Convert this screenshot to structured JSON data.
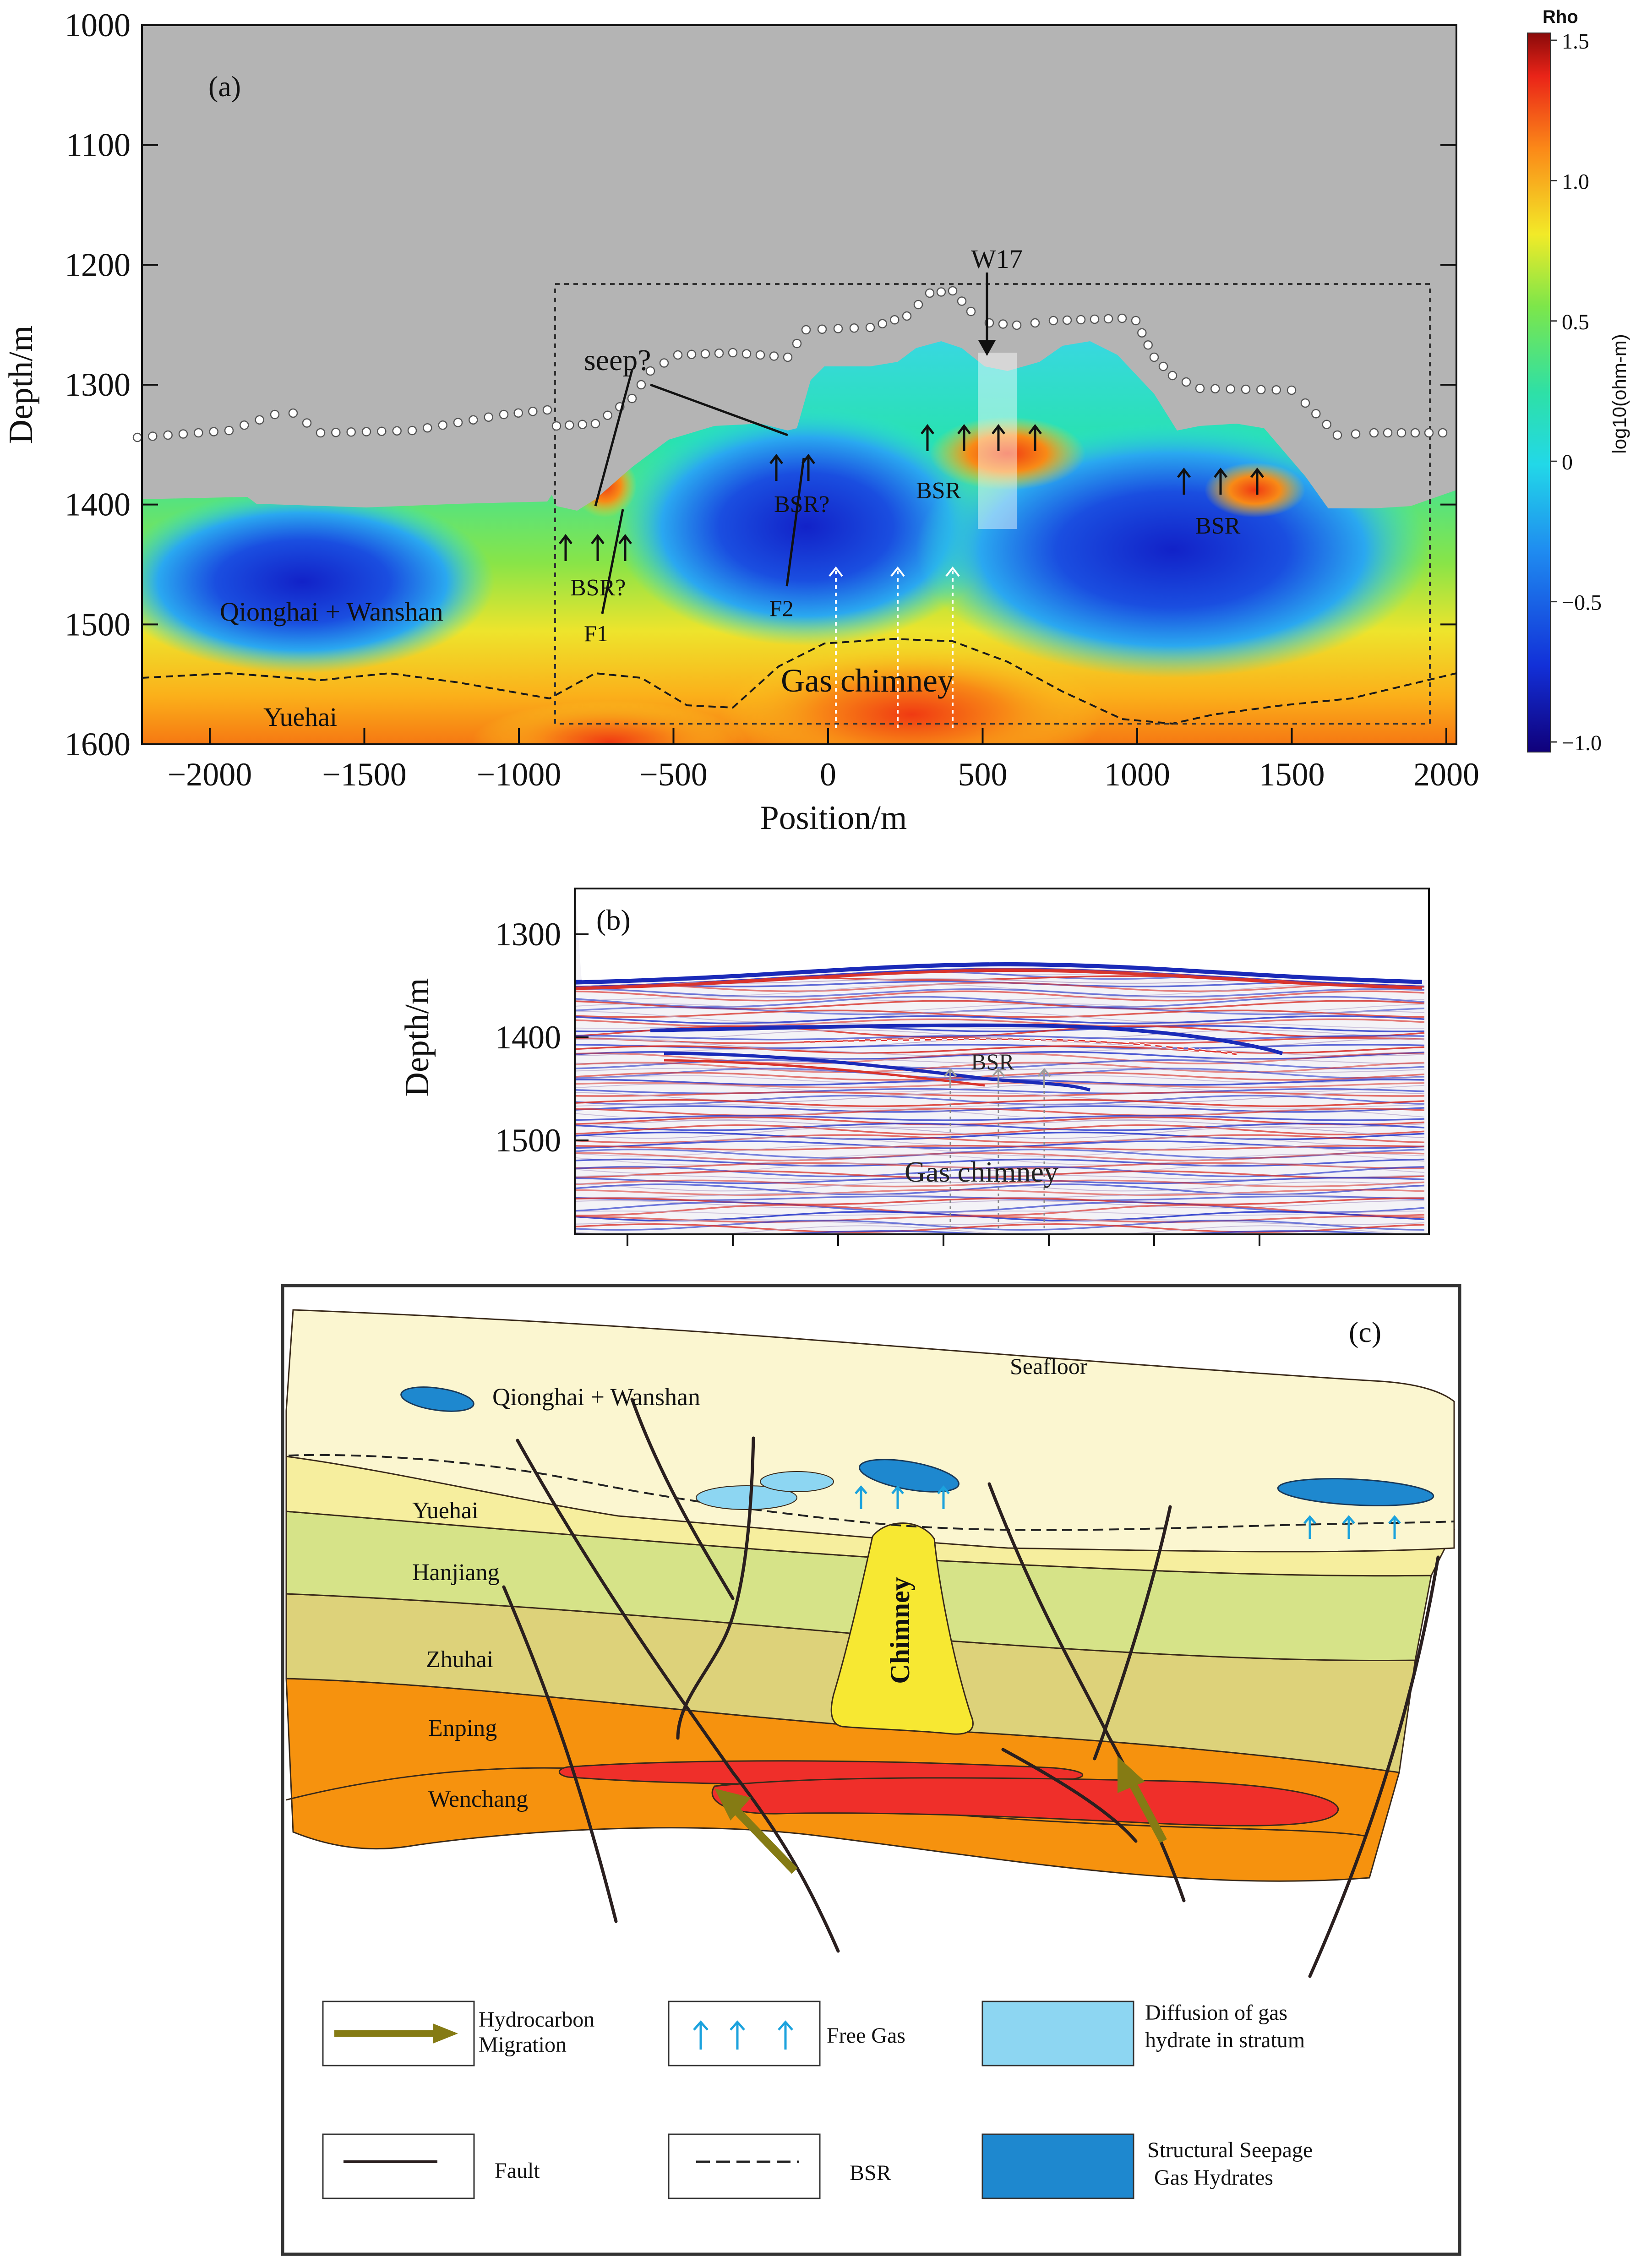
{
  "panel_a": {
    "label": "(a)",
    "ylabel": "Depth/m",
    "xlabel": "Position/m",
    "yticks": [
      "1000",
      "1100",
      "1200",
      "1300",
      "1400",
      "1500",
      "1600"
    ],
    "xticks": [
      "−2000",
      "−1500",
      "−1000",
      "−500",
      "0",
      "500",
      "1000",
      "1500",
      "2000"
    ],
    "annotations": {
      "well": "W17",
      "seep": "seep?",
      "bsr_q1": "BSR?",
      "bsr_q2": "BSR?",
      "bsr1": "BSR",
      "bsr2": "BSR",
      "f1": "F1",
      "f2": "F2",
      "unit_upper": "Qionghai + Wanshan",
      "unit_lower": "Yuehai",
      "chimney": "Gas chimney"
    },
    "colorbar": {
      "title": "Rho",
      "unit": "log10(ohm-m)",
      "ticks": [
        "1.5",
        "1.0",
        "0.5",
        "0",
        "−0.5",
        "−1.0"
      ]
    },
    "colors": {
      "background": "#b4b4b4",
      "low": "#0a1a9c",
      "high": "#c01010"
    }
  },
  "panel_b": {
    "label": "(b)",
    "ylabel": "Depth/m",
    "yticks": [
      "1300",
      "1400",
      "1500"
    ],
    "annotations": {
      "bsr": "BSR",
      "chimney": "Gas chimney"
    }
  },
  "panel_c": {
    "label": "(c)",
    "labels": {
      "seafloor": "Seafloor",
      "qionghai": "Qionghai + Wanshan",
      "yuehai": "Yuehai",
      "hanjiang": "Hanjiang",
      "zhuhai": "Zhuhai",
      "enping": "Enping",
      "wenchang": "Wenchang",
      "chimney": "Chimney"
    },
    "legend": {
      "hc_line1": "Hydrocarbon",
      "hc_line2": "Migration",
      "fault": "Fault",
      "free_gas": "Free Gas",
      "bsr": "BSR",
      "diff_line1": "Diffusion of gas",
      "diff_line2": "hydrate in stratum",
      "struct_line1": "Structural Seepage",
      "struct_line2": "Gas Hydrates"
    },
    "colors": {
      "seafloor_unit": "#fbf6d0",
      "yuehai": "#f6ee9e",
      "hanjiang": "#d6e388",
      "zhuhai": "#ddd27a",
      "enping": "#f6920e",
      "reservoir": "#ef2f2a",
      "chimney": "#f7e832",
      "diffusion": "#8dd6f2",
      "structural": "#1e88cf",
      "migration_arrow": "#857b14",
      "free_gas_arrow": "#1ba2dd"
    }
  }
}
